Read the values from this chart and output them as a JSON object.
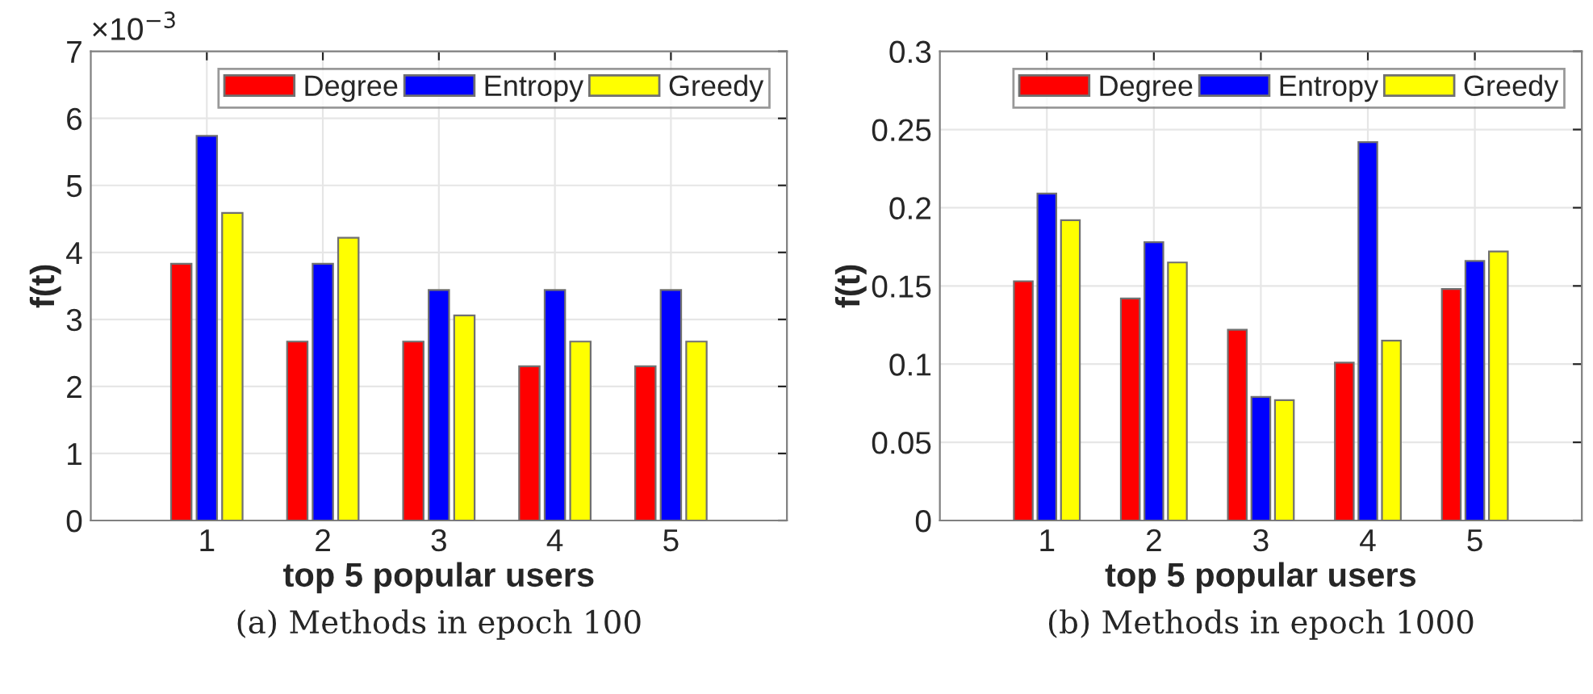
{
  "chart_data": [
    {
      "type": "bar",
      "xlabel": "top 5 popular users",
      "ylabel": "f(t)",
      "categories": [
        "1",
        "2",
        "3",
        "4",
        "5"
      ],
      "series": [
        {
          "name": "Degree",
          "color": "#ff0000",
          "values": [
            3.83,
            2.67,
            2.67,
            2.3,
            2.3
          ]
        },
        {
          "name": "Entropy",
          "color": "#0000ff",
          "values": [
            5.74,
            3.83,
            3.44,
            3.44,
            3.44
          ]
        },
        {
          "name": "Greedy",
          "color": "#ffff00",
          "values": [
            4.59,
            4.22,
            3.06,
            2.67,
            2.67
          ]
        }
      ],
      "ylim": [
        0,
        7
      ],
      "yticks": [
        0,
        1,
        2,
        3,
        4,
        5,
        6,
        7
      ],
      "grid": true,
      "legend": "top right",
      "annotations": [
        "×10$^{−3}$",
        "(a) Methods in epoch 100"
      ]
    },
    {
      "type": "bar",
      "xlabel": "top 5 popular users",
      "ylabel": "f(t)",
      "categories": [
        "1",
        "2",
        "3",
        "4",
        "5"
      ],
      "series": [
        {
          "name": "Degree",
          "color": "#ff0000",
          "values": [
            0.153,
            0.142,
            0.122,
            0.101,
            0.148
          ]
        },
        {
          "name": "Entropy",
          "color": "#0000ff",
          "values": [
            0.209,
            0.178,
            0.079,
            0.242,
            0.166
          ]
        },
        {
          "name": "Greedy",
          "color": "#ffff00",
          "values": [
            0.192,
            0.165,
            0.077,
            0.115,
            0.172
          ]
        }
      ],
      "ylim": [
        0,
        0.3
      ],
      "yticks": [
        0,
        0.05,
        0.1,
        0.15,
        0.2,
        0.25,
        0.3
      ],
      "grid": true,
      "legend": "top right",
      "annotations": [
        "(b) Methods in epoch 1000"
      ]
    }
  ]
}
